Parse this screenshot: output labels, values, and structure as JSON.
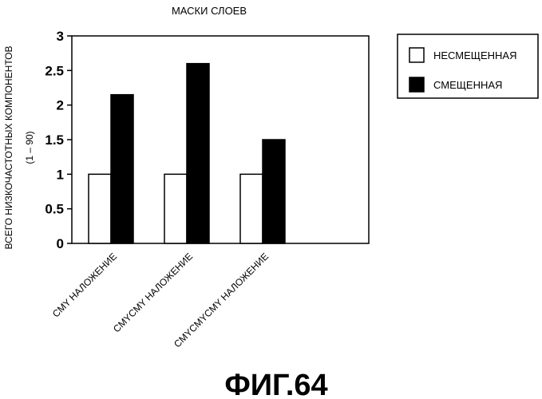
{
  "chart_data": {
    "type": "bar",
    "title": "МАСКИ СЛОЕВ",
    "ylabel": "ВСЕГО НИЗКОЧАСТОТНЫХ КОМПОНЕНТОВ",
    "ylabel_sub": "(1 – 90)",
    "categories": [
      "CMY НАЛОЖЕНИЕ",
      "CMYCMY НАЛОЖЕНИЕ",
      "CMYCMYCMY НАЛОЖЕНИЕ"
    ],
    "series": [
      {
        "name": "НЕСМЕЩЕННАЯ",
        "values": [
          1,
          1,
          1
        ],
        "color": "#ffffff"
      },
      {
        "name": "СМЕЩЕННАЯ",
        "values": [
          2.15,
          2.6,
          1.5
        ],
        "color": "#000000"
      }
    ],
    "ylim": [
      0,
      3
    ],
    "yticks": [
      "0",
      "0.5",
      "1",
      "1.5",
      "2",
      "2.5",
      "3"
    ],
    "grid": false,
    "legend_position": "right"
  },
  "figure_label": "ФИГ.64"
}
